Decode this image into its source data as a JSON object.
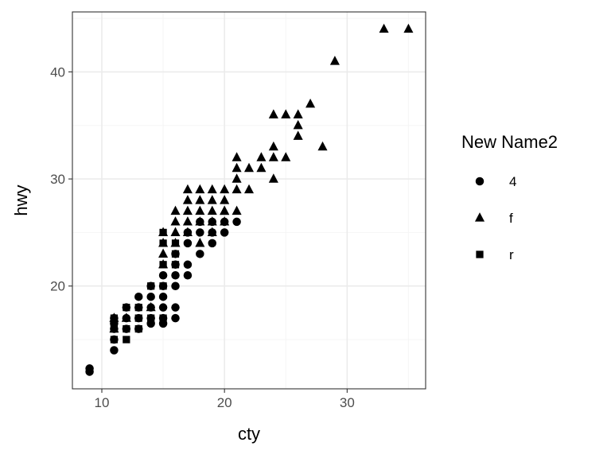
{
  "chart_data": {
    "type": "scatter",
    "title": "",
    "xlabel": "cty",
    "ylabel": "hwy",
    "xlim": [
      7.6,
      36.4
    ],
    "ylim": [
      10.4,
      45.6
    ],
    "x_ticks": [
      10,
      20,
      30
    ],
    "y_ticks": [
      20,
      30,
      40
    ],
    "x_tick_labels": [
      "10",
      "20",
      "30"
    ],
    "y_tick_labels": [
      "20",
      "30",
      "40"
    ],
    "grid": true,
    "theme": "bw",
    "legend": {
      "title": "New Name2",
      "position": "right",
      "entries": [
        {
          "label": "4",
          "shape": "circle"
        },
        {
          "label": "f",
          "shape": "triangle"
        },
        {
          "label": "r",
          "shape": "square"
        }
      ]
    },
    "colors": {
      "points": "#000000",
      "panel_border": "#333333",
      "grid_major": "#ebebeb",
      "grid_minor": "#f5f5f5"
    },
    "series": [
      {
        "name": "4",
        "shape": "circle",
        "points": [
          [
            9,
            12
          ],
          [
            9,
            12.3
          ],
          [
            11,
            14
          ],
          [
            11,
            15
          ],
          [
            11,
            16
          ],
          [
            11,
            16.5
          ],
          [
            11,
            17
          ],
          [
            12,
            16
          ],
          [
            12,
            17
          ],
          [
            13,
            17
          ],
          [
            13,
            18
          ],
          [
            14,
            17
          ],
          [
            14,
            18
          ],
          [
            14,
            19
          ],
          [
            15,
            17
          ],
          [
            15,
            18
          ],
          [
            15,
            19
          ],
          [
            15,
            20
          ],
          [
            16,
            17
          ],
          [
            16,
            20
          ],
          [
            16,
            21
          ],
          [
            16,
            22
          ],
          [
            17,
            22
          ],
          [
            18,
            23
          ],
          [
            19,
            24
          ],
          [
            19,
            25
          ],
          [
            20,
            25
          ],
          [
            21,
            26
          ],
          [
            12,
            18
          ],
          [
            13,
            19
          ],
          [
            14,
            20
          ],
          [
            15,
            21
          ],
          [
            16,
            23
          ],
          [
            17,
            24
          ],
          [
            17,
            25
          ],
          [
            18,
            25
          ],
          [
            18,
            26
          ],
          [
            19,
            26
          ],
          [
            20,
            26
          ],
          [
            15,
            16.5
          ],
          [
            13,
            16
          ],
          [
            14,
            16.5
          ],
          [
            16,
            18
          ],
          [
            17,
            21
          ]
        ]
      },
      {
        "name": "f",
        "shape": "triangle",
        "points": [
          [
            35,
            44
          ],
          [
            33,
            44
          ],
          [
            29,
            41
          ],
          [
            28,
            33
          ],
          [
            27,
            37
          ],
          [
            26,
            34
          ],
          [
            26,
            35
          ],
          [
            26,
            36
          ],
          [
            25,
            36
          ],
          [
            24,
            36
          ],
          [
            25,
            32
          ],
          [
            24,
            32
          ],
          [
            24,
            33
          ],
          [
            24,
            30
          ],
          [
            23,
            31
          ],
          [
            23,
            32
          ],
          [
            22,
            29
          ],
          [
            22,
            31
          ],
          [
            21,
            29
          ],
          [
            21,
            30
          ],
          [
            21,
            31
          ],
          [
            21,
            32
          ],
          [
            20,
            28
          ],
          [
            20,
            29
          ],
          [
            20,
            27
          ],
          [
            19,
            29
          ],
          [
            19,
            28
          ],
          [
            19,
            27
          ],
          [
            19,
            26
          ],
          [
            18,
            29
          ],
          [
            18,
            28
          ],
          [
            18,
            27
          ],
          [
            18,
            26
          ],
          [
            17,
            29
          ],
          [
            17,
            27
          ],
          [
            17,
            26
          ],
          [
            17,
            28
          ],
          [
            16,
            26
          ],
          [
            16,
            27
          ],
          [
            16,
            25
          ],
          [
            16,
            24
          ],
          [
            15,
            22
          ],
          [
            15,
            23
          ],
          [
            15,
            24
          ],
          [
            15,
            25
          ],
          [
            11,
            17
          ],
          [
            11,
            16
          ],
          [
            12,
            17
          ],
          [
            14,
            18
          ],
          [
            19,
            25
          ],
          [
            17,
            25
          ],
          [
            20,
            27
          ],
          [
            18,
            24
          ],
          [
            21,
            27
          ],
          [
            20,
            26
          ]
        ]
      },
      {
        "name": "r",
        "shape": "square",
        "points": [
          [
            11,
            15
          ],
          [
            11,
            16
          ],
          [
            11,
            17
          ],
          [
            12,
            15
          ],
          [
            12,
            16
          ],
          [
            12,
            18
          ],
          [
            13,
            17
          ],
          [
            13,
            18
          ],
          [
            14,
            17
          ],
          [
            14,
            20
          ],
          [
            15,
            20
          ],
          [
            15,
            22
          ],
          [
            15,
            25
          ],
          [
            16,
            22
          ],
          [
            16,
            23
          ],
          [
            16,
            24
          ],
          [
            15,
            24
          ],
          [
            15,
            17
          ],
          [
            13,
            16
          ]
        ]
      }
    ]
  }
}
